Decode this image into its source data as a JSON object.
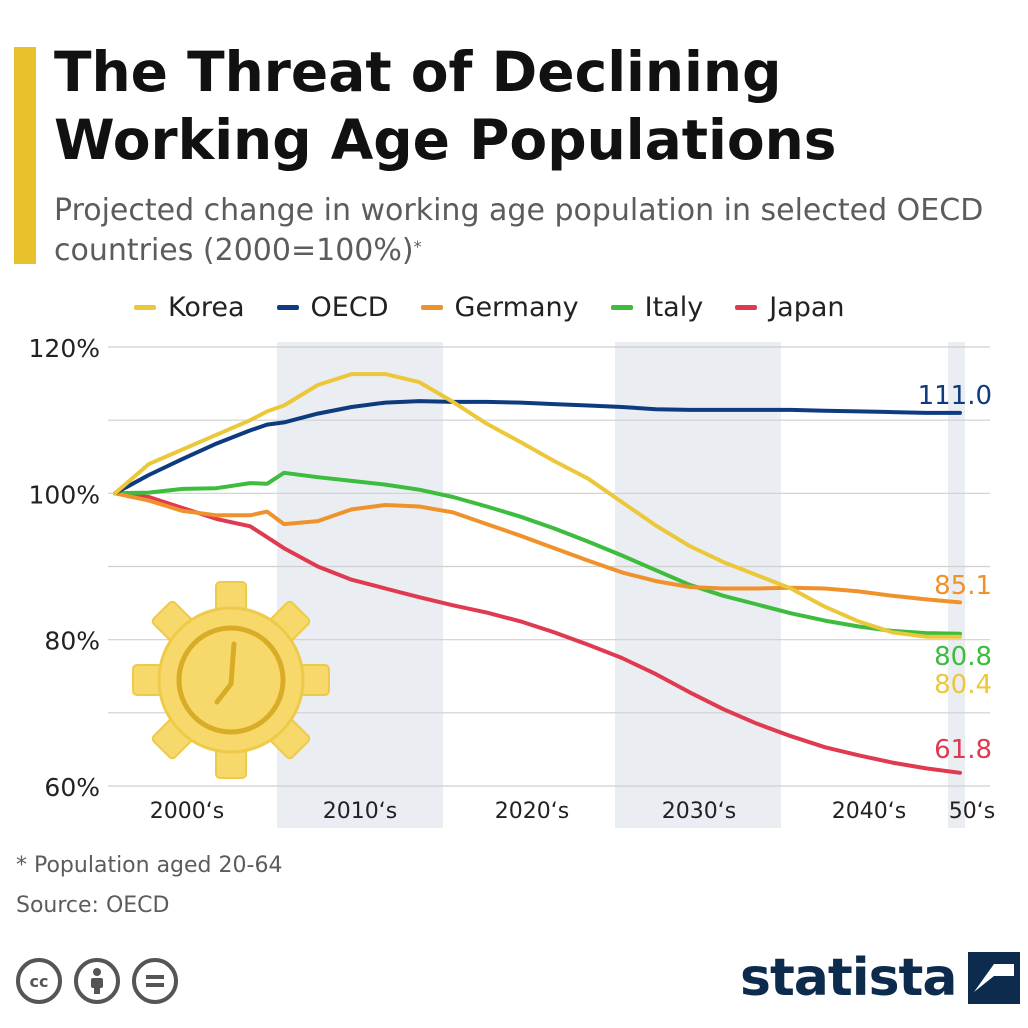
{
  "title": "The Threat of Declining Working Age Populations",
  "subtitle": "Projected change in working age population in selected OECD countries (2000=100%)",
  "subtitle_mark": "*",
  "footnote": "* Population aged 20-64",
  "source": "Source: OECD",
  "brand": "statista",
  "colors": {
    "accent": "#e8c22c",
    "Korea": "#ecc73a",
    "OECD": "#0e3b80",
    "Germany": "#f0922c",
    "Italy": "#3dbc3d",
    "Japan": "#e03a50",
    "band": "#eaeef3",
    "grid": "#cfcfcf"
  },
  "icons": [
    "clock-gear-icon",
    "cc-icon",
    "by-icon",
    "nd-icon",
    "statista-logo-icon"
  ],
  "chart_data": {
    "type": "line",
    "title": "The Threat of Declining Working Age Populations",
    "ylabel": "",
    "xlabel": "",
    "ylim": [
      60,
      120
    ],
    "yticks": [
      60,
      80,
      100,
      120
    ],
    "ytick_labels": [
      "60%",
      "80%",
      "100%",
      "120%"
    ],
    "xlim": [
      2000,
      2050
    ],
    "x_categories": [
      "2000‘s",
      "2010‘s",
      "2020‘s",
      "2030‘s",
      "2040‘s",
      "50‘s"
    ],
    "shaded_decades": [
      "2010‘s",
      "2030‘s",
      "50‘s"
    ],
    "grid": true,
    "legend": "top",
    "x": [
      2000,
      2002,
      2004,
      2006,
      2008,
      2009,
      2010,
      2012,
      2014,
      2016,
      2018,
      2020,
      2022,
      2024,
      2026,
      2028,
      2030,
      2032,
      2034,
      2036,
      2038,
      2040,
      2042,
      2044,
      2046,
      2048,
      2050
    ],
    "series": [
      {
        "name": "Korea",
        "values": [
          100,
          104,
          106,
          108,
          110,
          111.2,
          112,
          114.8,
          116.3,
          116.3,
          115.2,
          112.5,
          109.5,
          107,
          104.4,
          102,
          98.8,
          95.6,
          92.8,
          90.6,
          88.8,
          87,
          84.5,
          82.5,
          81,
          80.4,
          80.4
        ],
        "end_label": "80.4"
      },
      {
        "name": "OECD",
        "values": [
          100,
          102.5,
          104.7,
          106.8,
          108.6,
          109.4,
          109.7,
          110.9,
          111.8,
          112.4,
          112.6,
          112.5,
          112.5,
          112.4,
          112.2,
          112,
          111.8,
          111.5,
          111.4,
          111.4,
          111.4,
          111.4,
          111.3,
          111.2,
          111.1,
          111,
          111.0
        ],
        "end_label": "111.0"
      },
      {
        "name": "Germany",
        "values": [
          100,
          99,
          97.6,
          97,
          97,
          97.5,
          95.8,
          96.2,
          97.8,
          98.4,
          98.2,
          97.4,
          95.8,
          94.2,
          92.5,
          90.8,
          89.2,
          88,
          87.2,
          87,
          87,
          87.1,
          87,
          86.6,
          86,
          85.5,
          85.1
        ],
        "end_label": "85.1"
      },
      {
        "name": "Italy",
        "values": [
          100,
          100.1,
          100.6,
          100.7,
          101.4,
          101.3,
          102.8,
          102.2,
          101.7,
          101.2,
          100.5,
          99.5,
          98.2,
          96.8,
          95.2,
          93.4,
          91.5,
          89.5,
          87.5,
          86,
          84.8,
          83.6,
          82.6,
          81.8,
          81.2,
          80.9,
          80.8
        ],
        "end_label": "80.8"
      },
      {
        "name": "Japan",
        "values": [
          100,
          99.5,
          98,
          96.5,
          95.5,
          94,
          92.5,
          90,
          88.2,
          87,
          85.8,
          84.7,
          83.7,
          82.5,
          81,
          79.3,
          77.5,
          75.3,
          72.8,
          70.5,
          68.5,
          66.8,
          65.3,
          64.2,
          63.2,
          62.4,
          61.8
        ],
        "end_label": "61.8"
      }
    ]
  }
}
